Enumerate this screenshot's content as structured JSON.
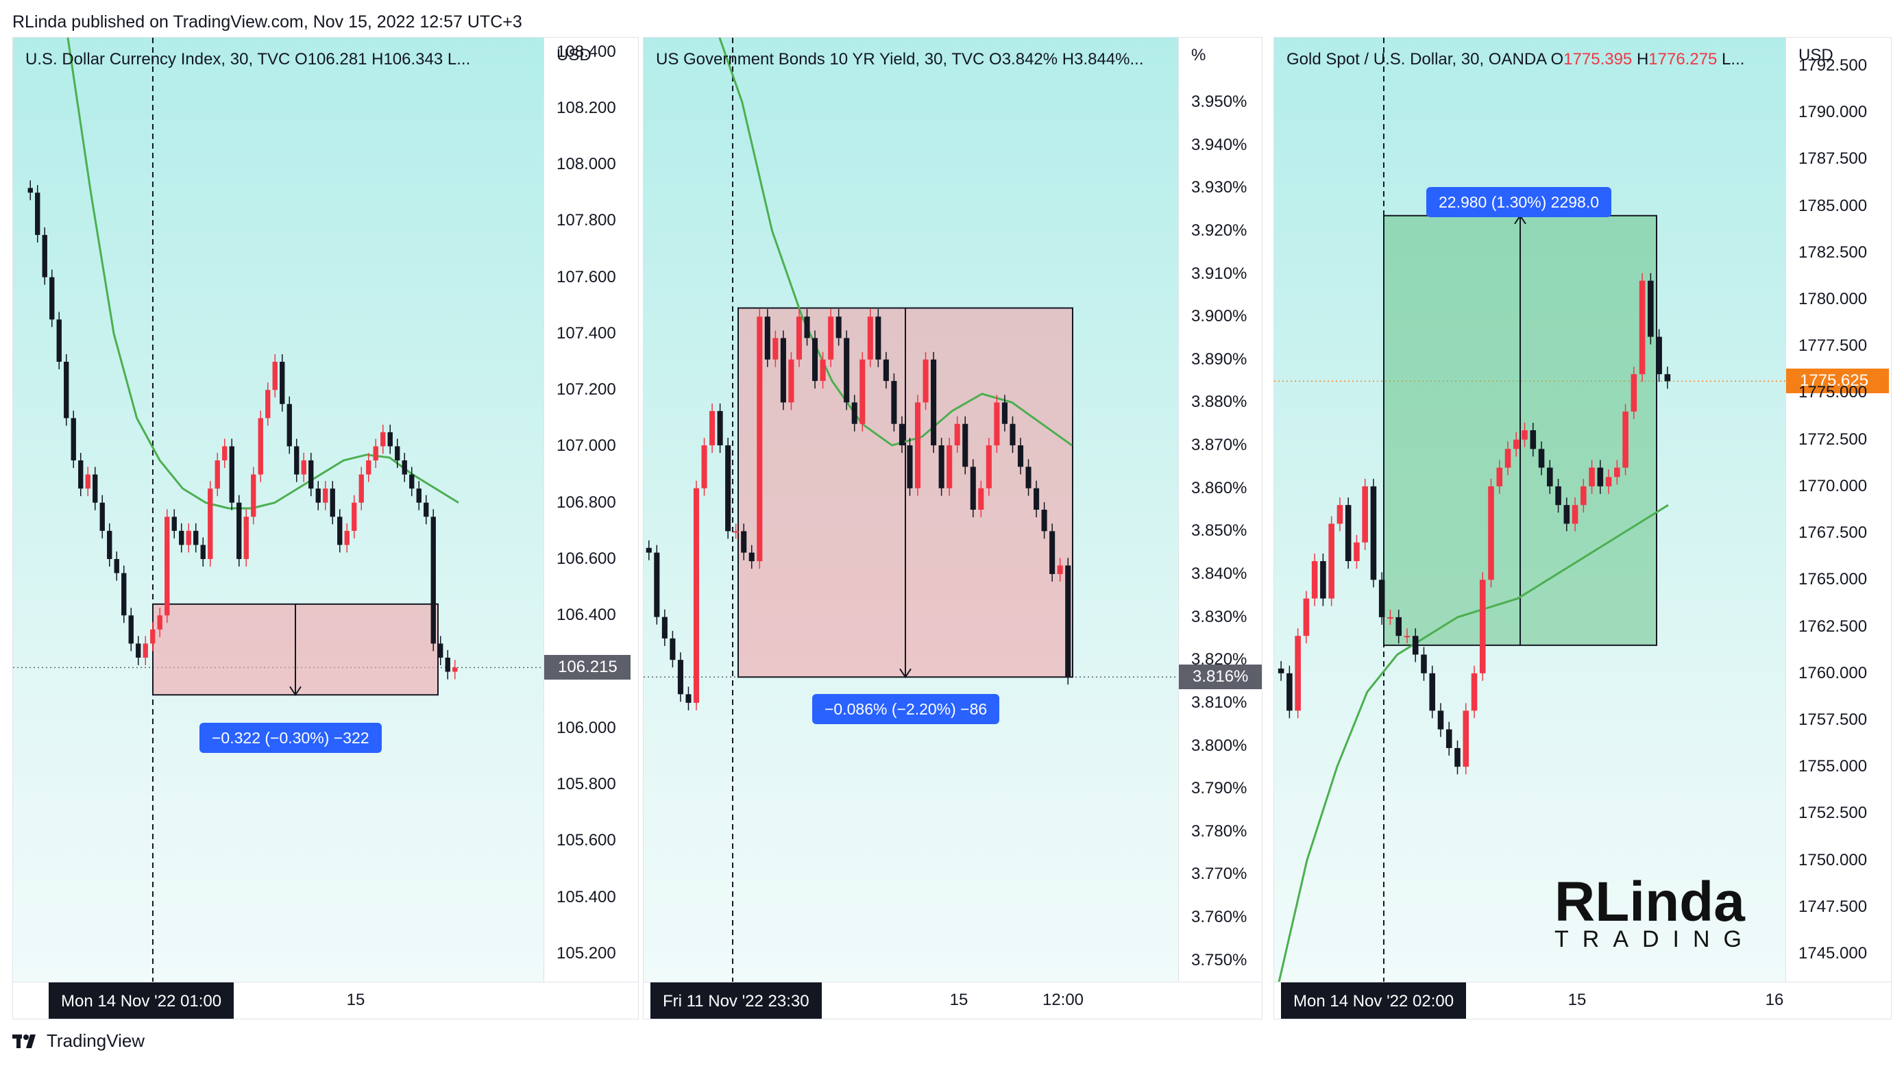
{
  "header": "RLinda published on TradingView.com, Nov 15, 2022 12:57 UTC+3",
  "footer_brand": "TradingView",
  "logo_text": {
    "main": "RLinda",
    "sub": "TRADING"
  },
  "colors": {
    "bull": "#f23645",
    "bear": "#131722",
    "ma": "#4caf50",
    "measure_down": "#f1a6ab",
    "measure_up": "#6cc58a",
    "label_blue": "#2962ff",
    "last_price_dark": "#5d606b",
    "last_price_orange": "#f57f17"
  },
  "charts": [
    {
      "title": "U.S. Dollar Currency Index, 30, TVC  O106.281  H106.343  L...",
      "unit": "USD",
      "yticks": [
        "108.400",
        "108.200",
        "108.000",
        "107.800",
        "107.600",
        "107.400",
        "107.200",
        "107.000",
        "106.800",
        "106.600",
        "106.400",
        "106.000",
        "105.800",
        "105.600",
        "105.400",
        "105.200"
      ],
      "last_price": "106.215",
      "measure_label": "−0.322 (−0.30%) −322",
      "cross_time": "Mon 14 Nov '22   01:00",
      "time_labels": [
        "15"
      ]
    },
    {
      "title": "US Government Bonds 10 YR Yield, 30, TVC  O3.842%  H3.844%...",
      "unit": "%",
      "yticks": [
        "3.950%",
        "3.940%",
        "3.930%",
        "3.920%",
        "3.910%",
        "3.900%",
        "3.890%",
        "3.880%",
        "3.870%",
        "3.860%",
        "3.850%",
        "3.840%",
        "3.830%",
        "3.820%",
        "3.810%",
        "3.800%",
        "3.790%",
        "3.780%",
        "3.770%",
        "3.760%",
        "3.750%"
      ],
      "last_price": "3.816%",
      "measure_label": "−0.086% (−2.20%) −86",
      "cross_time": "Fri 11 Nov '22   23:30",
      "time_labels": [
        "15",
        "12:00"
      ]
    },
    {
      "title_parts": [
        "Gold Spot / U.S. Dollar, 30, OANDA  O",
        "1775.395",
        "  H",
        "1776.275",
        "  L..."
      ],
      "unit": "USD",
      "yticks": [
        "1792.500",
        "1790.000",
        "1787.500",
        "1785.000",
        "1782.500",
        "1780.000",
        "1777.500",
        "1775.000",
        "1772.500",
        "1770.000",
        "1767.500",
        "1765.000",
        "1762.500",
        "1760.000",
        "1757.500",
        "1755.000",
        "1752.500",
        "1750.000",
        "1747.500",
        "1745.000"
      ],
      "last_price": "1775.625",
      "measure_label": "22.980 (1.30%) 2298.0",
      "cross_time": "Mon 14 Nov '22   02:00",
      "time_labels": [
        "15",
        "16"
      ]
    }
  ],
  "chart_data": [
    {
      "type": "candlestick",
      "title": "U.S. Dollar Currency Index, 30, TVC",
      "ylim": [
        105.1,
        108.45
      ],
      "close_series": [
        107.9,
        107.75,
        107.6,
        107.45,
        107.3,
        107.1,
        106.95,
        106.85,
        106.9,
        106.8,
        106.7,
        106.6,
        106.55,
        106.4,
        106.3,
        106.25,
        106.3,
        106.35,
        106.4,
        106.75,
        106.7,
        106.65,
        106.7,
        106.65,
        106.6,
        106.85,
        106.95,
        107.0,
        106.8,
        106.6,
        106.75,
        106.9,
        107.1,
        107.2,
        107.3,
        107.15,
        107.0,
        106.9,
        106.95,
        106.85,
        106.8,
        106.85,
        106.75,
        106.65,
        106.7,
        106.8,
        106.9,
        106.95,
        107.0,
        107.05,
        107.0,
        106.95,
        106.9,
        106.85,
        106.8,
        106.75,
        106.3,
        106.25,
        106.2,
        106.215
      ],
      "ma_series": [
        108.45,
        107.9,
        107.4,
        107.1,
        106.95,
        106.85,
        106.8,
        106.78,
        106.78,
        106.8,
        106.85,
        106.9,
        106.95,
        106.97,
        106.96,
        106.9,
        106.85,
        106.8
      ],
      "measure": {
        "from": 106.44,
        "to": 106.118,
        "label": "−0.322 (−0.30%) −322"
      },
      "last_price": 106.215
    },
    {
      "type": "candlestick",
      "title": "US Government Bonds 10 YR Yield, 30, TVC",
      "ylim": [
        3.745,
        3.965
      ],
      "close_series": [
        3.845,
        3.83,
        3.825,
        3.82,
        3.812,
        3.81,
        3.86,
        3.87,
        3.878,
        3.87,
        3.85,
        3.85,
        3.845,
        3.843,
        3.9,
        3.89,
        3.895,
        3.88,
        3.89,
        3.9,
        3.895,
        3.885,
        3.89,
        3.9,
        3.895,
        3.88,
        3.875,
        3.89,
        3.9,
        3.89,
        3.885,
        3.875,
        3.87,
        3.86,
        3.88,
        3.89,
        3.87,
        3.86,
        3.87,
        3.875,
        3.865,
        3.855,
        3.86,
        3.87,
        3.88,
        3.875,
        3.87,
        3.865,
        3.86,
        3.855,
        3.85,
        3.84,
        3.842,
        3.816
      ],
      "ma_series": [
        3.97,
        3.95,
        3.92,
        3.9,
        3.885,
        3.875,
        3.87,
        3.872,
        3.878,
        3.882,
        3.88,
        3.875,
        3.87
      ],
      "measure": {
        "from": 3.902,
        "to": 3.816,
        "label": "−0.086% (−2.20%) −86"
      },
      "last_price": 3.816
    },
    {
      "type": "candlestick",
      "title": "Gold Spot / U.S. Dollar, 30, OANDA",
      "ylim": [
        1743.5,
        1794.0
      ],
      "close_series": [
        1760,
        1758,
        1762,
        1764,
        1766,
        1764,
        1768,
        1769,
        1766,
        1767,
        1770,
        1765,
        1763,
        1763,
        1762,
        1762,
        1761,
        1760,
        1758,
        1757,
        1756,
        1755,
        1758,
        1760,
        1765,
        1770,
        1771,
        1772,
        1772.5,
        1773,
        1772,
        1771,
        1770,
        1769,
        1768,
        1769,
        1770,
        1771,
        1770,
        1770.5,
        1771,
        1774,
        1776,
        1781,
        1778,
        1776,
        1775.625
      ],
      "ma_series": [
        1743,
        1750,
        1755,
        1759,
        1761,
        1762,
        1763,
        1763.5,
        1764,
        1765,
        1766,
        1767,
        1768,
        1769
      ],
      "measure": {
        "from": 1761.5,
        "to": 1784.48,
        "label": "22.980 (1.30%) 2298.0"
      },
      "last_price": 1775.625
    }
  ]
}
